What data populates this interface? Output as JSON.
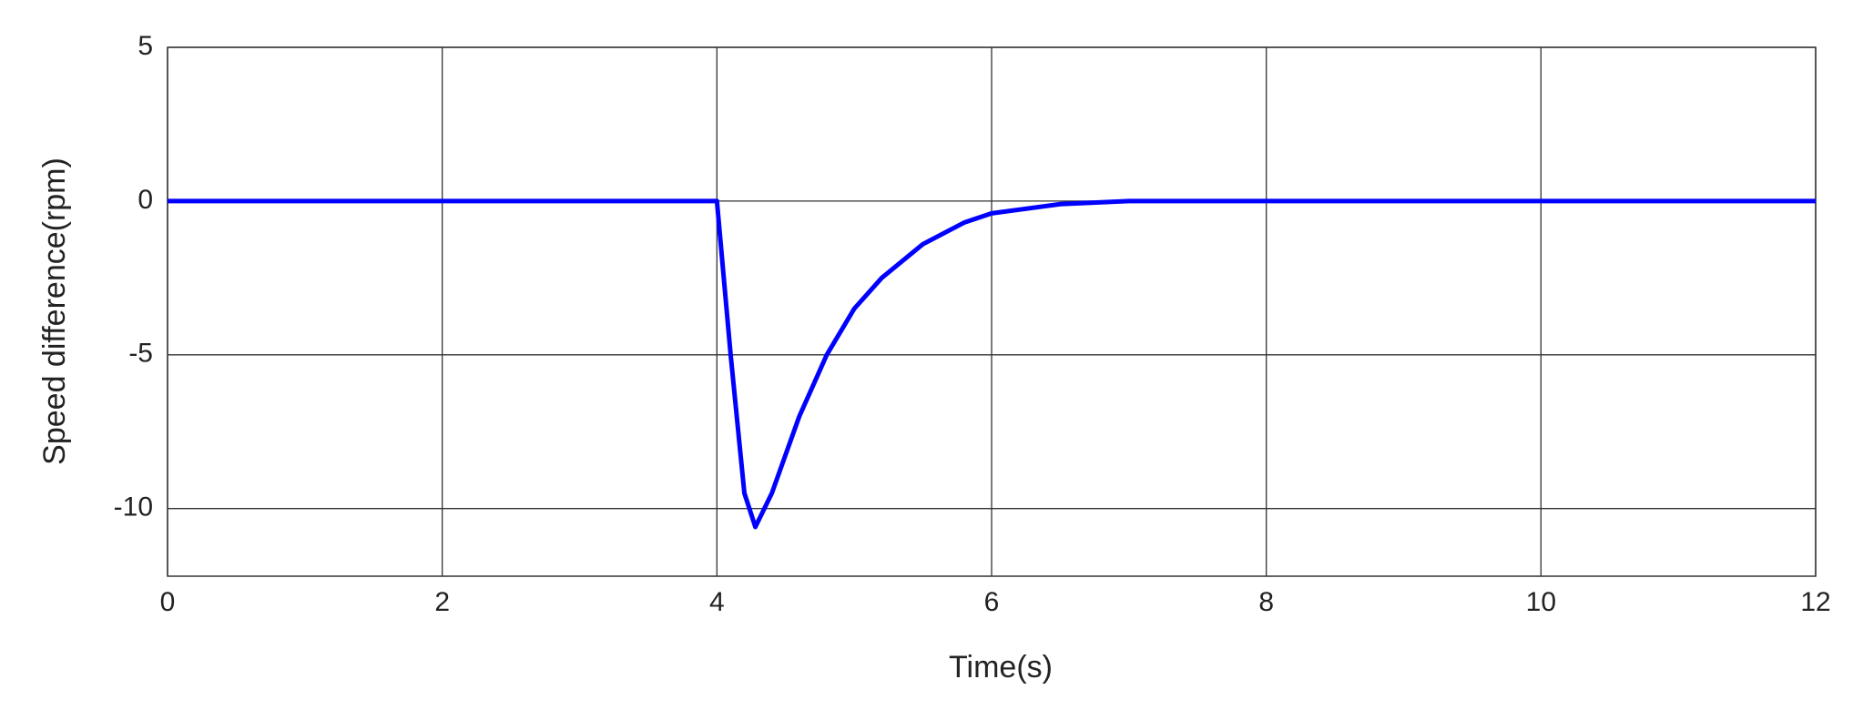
{
  "chart_data": {
    "type": "line",
    "xlabel": "Time(s)",
    "ylabel": "Speed difference(rpm)",
    "x": [
      0,
      4,
      4.02,
      4.1,
      4.2,
      4.28,
      4.4,
      4.6,
      4.8,
      5,
      5.2,
      5.5,
      5.8,
      6,
      6.5,
      7,
      8,
      9,
      10,
      11,
      12
    ],
    "series": [
      {
        "name": "Speed difference",
        "color": "#0000ff",
        "values": [
          0,
          0,
          -1,
          -5,
          -9.5,
          -10.6,
          -9.5,
          -7,
          -5,
          -3.5,
          -2.5,
          -1.4,
          -0.7,
          -0.4,
          -0.1,
          0,
          0,
          0,
          0,
          0,
          0
        ]
      }
    ],
    "xlim": [
      0,
      12
    ],
    "xticks": [
      0,
      2,
      4,
      6,
      8,
      10,
      12
    ],
    "ylim": [
      -12.2,
      5
    ],
    "yticks": [
      -10,
      -5,
      0,
      5
    ],
    "grid": true
  }
}
